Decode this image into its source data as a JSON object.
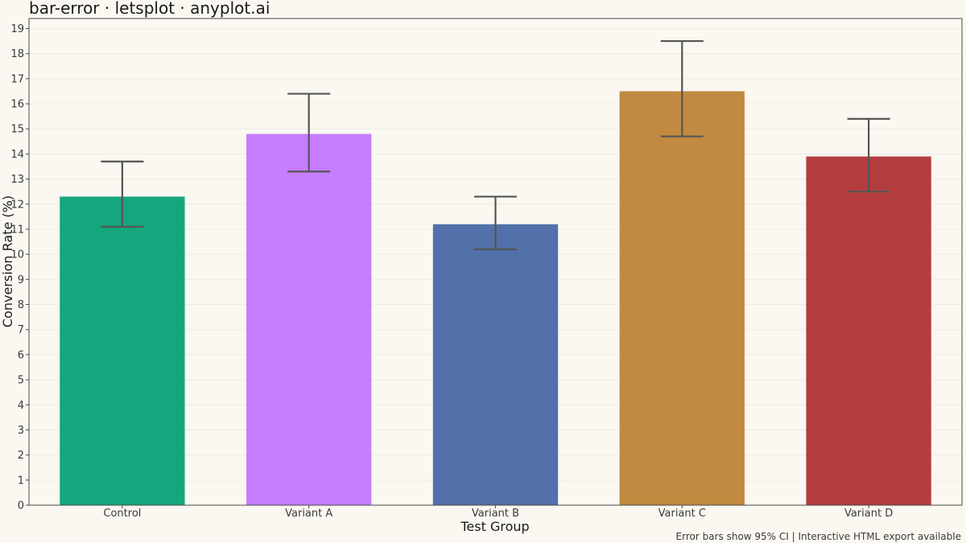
{
  "chart_data": {
    "type": "bar",
    "title": "bar-error · letsplot · anyplot.ai",
    "xlabel": "Test Group",
    "ylabel": "Conversion Rate (%)",
    "caption": "Error bars show 95% CI | Interactive HTML export available",
    "categories": [
      "Control",
      "Variant A",
      "Variant B",
      "Variant C",
      "Variant D"
    ],
    "values": [
      12.3,
      14.8,
      11.2,
      16.5,
      13.9
    ],
    "error_lower": [
      11.1,
      13.3,
      10.2,
      14.7,
      12.5
    ],
    "error_upper": [
      13.7,
      16.4,
      12.3,
      18.5,
      15.4
    ],
    "colors": [
      "#16A67E",
      "#C77DFF",
      "#5271AA",
      "#C18A40",
      "#B43E3F"
    ],
    "error_bar_color": "#555555",
    "ylim": [
      0,
      19.4
    ],
    "yticks": [
      0,
      1,
      2,
      3,
      4,
      5,
      6,
      7,
      8,
      9,
      10,
      11,
      12,
      13,
      14,
      15,
      16,
      17,
      18,
      19
    ],
    "grid": true,
    "legend": "none"
  }
}
